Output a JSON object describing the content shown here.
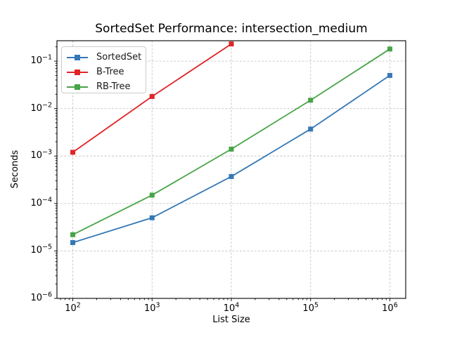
{
  "chart_data": {
    "type": "line",
    "title": "SortedSet Performance: intersection_medium",
    "xlabel": "List Size",
    "ylabel": "Seconds",
    "xscale": "log",
    "yscale": "log",
    "xlim_log10": [
      1.8,
      6.2
    ],
    "ylim_log10": [
      -6,
      -0.57
    ],
    "x_tick_exponents": [
      2,
      3,
      4,
      5,
      6
    ],
    "y_tick_exponents": [
      -1,
      -2,
      -3,
      -4,
      -5,
      -6
    ],
    "grid": "major-both-dashed",
    "legend_position": "upper-left",
    "series": [
      {
        "name": "SortedSet",
        "color": "#3478b6",
        "marker": "square",
        "x": [
          100,
          1000,
          10000,
          100000,
          1000000
        ],
        "y": [
          1.5e-05,
          5e-05,
          0.00037,
          0.0037,
          0.05
        ]
      },
      {
        "name": "B-Tree",
        "color": "#e02428",
        "marker": "square",
        "x": [
          100,
          1000,
          10000
        ],
        "y": [
          0.0012,
          0.018,
          0.23
        ]
      },
      {
        "name": "RB-Tree",
        "color": "#47a447",
        "marker": "square",
        "x": [
          100,
          1000,
          10000,
          100000,
          1000000
        ],
        "y": [
          2.2e-05,
          0.00015,
          0.0014,
          0.015,
          0.18
        ]
      }
    ],
    "style": {
      "grid_color": "#c6c6c6",
      "spine_color": "#000000",
      "background": "#ffffff"
    }
  }
}
